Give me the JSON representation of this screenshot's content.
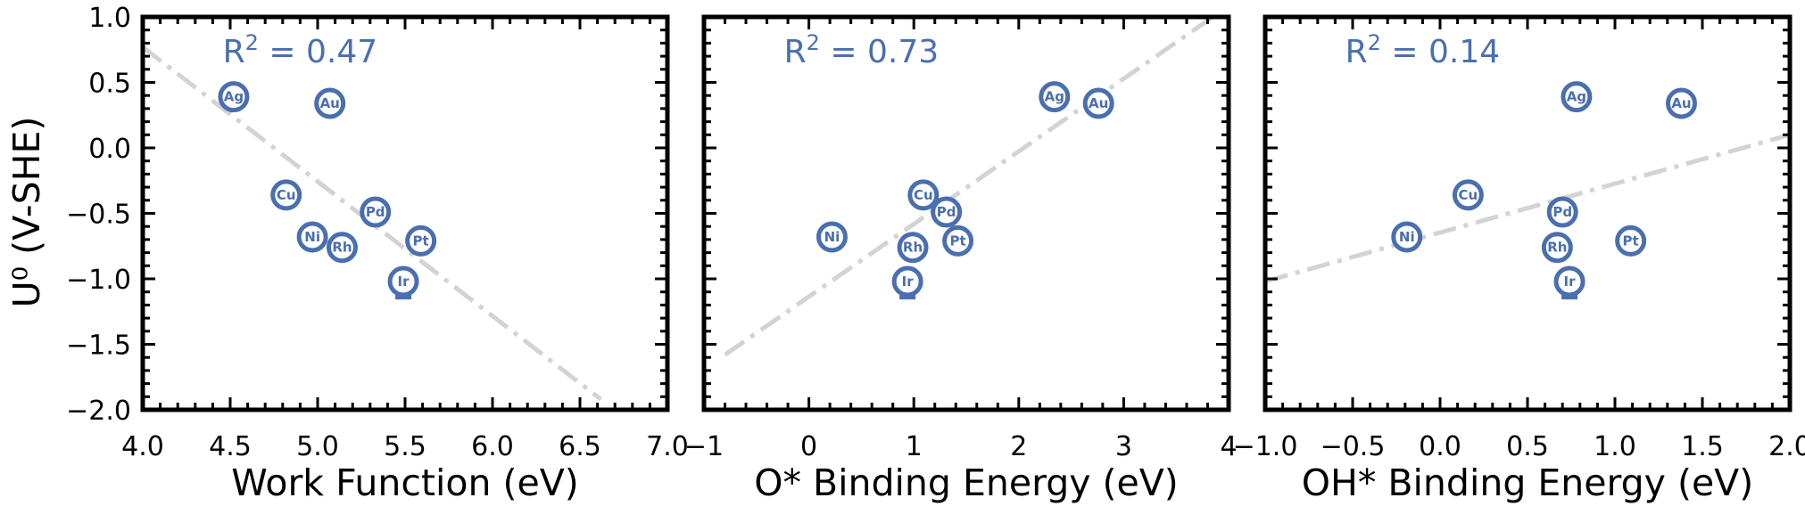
{
  "colors": {
    "marker": "#4a6fb0",
    "fit_line": "#d3d3d3",
    "axes": "#000000",
    "r2_text": "#4a6fb0"
  },
  "y_axis_label": "U⁰ (V-SHE)",
  "chart_data": [
    {
      "type": "scatter",
      "xlabel": "Work Function (eV)",
      "xlim": [
        4.0,
        7.0
      ],
      "ylim": [
        -2.0,
        1.0
      ],
      "xticks": [
        "4.0",
        "4.5",
        "5.0",
        "5.5",
        "6.0",
        "6.5",
        "7.0"
      ],
      "yticks": [
        "1.0",
        "0.5",
        "0.0",
        "−0.5",
        "−1.0",
        "−1.5",
        "−2.0"
      ],
      "r2": "R² = 0.47",
      "fit": [
        [
          4.0,
          0.77
        ],
        [
          6.62,
          -1.92
        ]
      ],
      "points": [
        {
          "label": "Ag",
          "x": 4.52,
          "y": 0.39
        },
        {
          "label": "Au",
          "x": 5.07,
          "y": 0.34
        },
        {
          "label": "Cu",
          "x": 4.82,
          "y": -0.36
        },
        {
          "label": "Pd",
          "x": 5.33,
          "y": -0.49
        },
        {
          "label": "Ni",
          "x": 4.97,
          "y": -0.68
        },
        {
          "label": "Rh",
          "x": 5.14,
          "y": -0.76
        },
        {
          "label": "Pt",
          "x": 5.59,
          "y": -0.71
        },
        {
          "label": "Ir",
          "x": 5.49,
          "y": -1.02,
          "err_low": 0.12
        }
      ]
    },
    {
      "type": "scatter",
      "xlabel": "O* Binding Energy (eV)",
      "xlim": [
        -1,
        4
      ],
      "ylim": [
        -2.0,
        1.0
      ],
      "xticks": [
        "−1",
        "0",
        "1",
        "2",
        "3",
        "4"
      ],
      "yticks": [],
      "r2": "R² = 0.73",
      "fit": [
        [
          -0.8,
          -1.58
        ],
        [
          3.85,
          1.0
        ]
      ],
      "points": [
        {
          "label": "Ag",
          "x": 2.34,
          "y": 0.39
        },
        {
          "label": "Au",
          "x": 2.76,
          "y": 0.34
        },
        {
          "label": "Cu",
          "x": 1.09,
          "y": -0.36
        },
        {
          "label": "Pd",
          "x": 1.31,
          "y": -0.49
        },
        {
          "label": "Ni",
          "x": 0.22,
          "y": -0.68
        },
        {
          "label": "Rh",
          "x": 0.99,
          "y": -0.76
        },
        {
          "label": "Pt",
          "x": 1.42,
          "y": -0.71
        },
        {
          "label": "Ir",
          "x": 0.94,
          "y": -1.02,
          "err_low": 0.12
        }
      ]
    },
    {
      "type": "scatter",
      "xlabel": "OH* Binding Energy (eV)",
      "xlim": [
        -1.0,
        2.0
      ],
      "ylim": [
        -2.0,
        1.0
      ],
      "xticks": [
        "−1.0",
        "−0.5",
        "0.0",
        "0.5",
        "1.0",
        "1.5",
        "2.0"
      ],
      "yticks": [],
      "r2": "R² = 0.14",
      "fit": [
        [
          -1.0,
          -1.02
        ],
        [
          2.0,
          0.1
        ]
      ],
      "points": [
        {
          "label": "Ag",
          "x": 0.78,
          "y": 0.39
        },
        {
          "label": "Au",
          "x": 1.38,
          "y": 0.34
        },
        {
          "label": "Cu",
          "x": 0.16,
          "y": -0.36
        },
        {
          "label": "Pd",
          "x": 0.7,
          "y": -0.49
        },
        {
          "label": "Ni",
          "x": -0.19,
          "y": -0.68
        },
        {
          "label": "Rh",
          "x": 0.67,
          "y": -0.76
        },
        {
          "label": "Pt",
          "x": 1.09,
          "y": -0.71
        },
        {
          "label": "Ir",
          "x": 0.74,
          "y": -1.02,
          "err_low": 0.12
        }
      ]
    }
  ]
}
